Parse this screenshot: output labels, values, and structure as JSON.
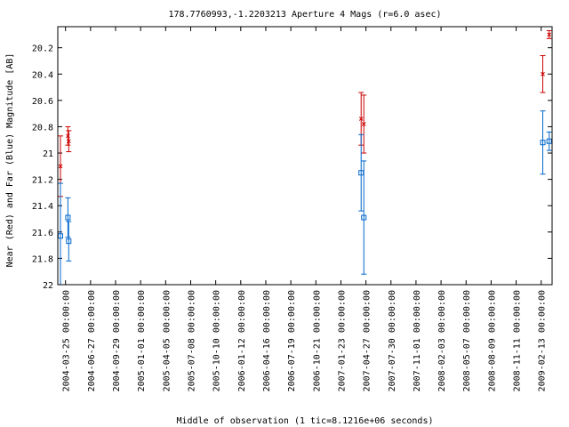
{
  "chart_data": {
    "type": "scatter",
    "title": "178.7760993,-1.2203213   Aperture 4 Mags (r=6.0 asec)",
    "xlabel": "Middle of observation (1 tic=8.1216e+06 seconds)",
    "ylabel": "Near (Red) and Far (Blue) Magnitude [AB]",
    "ylim": [
      20.04,
      22.0
    ],
    "y_reversed": true,
    "grid": false,
    "y_ticks": [
      "20.2",
      "20.4",
      "20.6",
      "20.8",
      "21",
      "21.2",
      "21.4",
      "21.6",
      "21.8",
      "22"
    ],
    "x_ticks": [
      "2004-03-25 00:00:00",
      "2004-06-27 00:00:00",
      "2004-09-29 00:00:00",
      "2005-01-01 00:00:00",
      "2005-04-05 00:00:00",
      "2005-07-08 00:00:00",
      "2005-10-10 00:00:00",
      "2006-01-12 00:00:00",
      "2006-04-16 00:00:00",
      "2006-07-19 00:00:00",
      "2006-10-21 00:00:00",
      "2007-01-23 00:00:00",
      "2007-04-27 00:00:00",
      "2007-07-30 00:00:00",
      "2007-11-01 00:00:00",
      "2008-02-03 00:00:00",
      "2008-05-07 00:00:00",
      "2008-08-09 00:00:00",
      "2008-11-11 00:00:00",
      "2009-02-13 00:00:00"
    ],
    "xlim": [
      "2004-02-25",
      "2009-03-26"
    ],
    "series": [
      {
        "name": "Near (Red)",
        "color": "#cc0000",
        "marker": "x",
        "points": [
          {
            "x": "2004-03-06",
            "y": 21.1,
            "err": 0.23
          },
          {
            "x": "2004-04-03",
            "y": 20.87,
            "err": 0.07
          },
          {
            "x": "2004-04-06",
            "y": 20.91,
            "err": 0.08
          },
          {
            "x": "2007-04-09",
            "y": 20.74,
            "err": 0.2
          },
          {
            "x": "2007-04-19",
            "y": 20.78,
            "err": 0.22
          },
          {
            "x": "2009-02-19",
            "y": 20.4,
            "err": 0.14
          },
          {
            "x": "2009-03-15",
            "y": 20.1,
            "err": 0.03
          }
        ]
      },
      {
        "name": "Far (Blue)",
        "color": "#0066cc",
        "marker": "square",
        "points": [
          {
            "x": "2004-03-06",
            "y": 21.63,
            "err": 0.4
          },
          {
            "x": "2004-04-03",
            "y": 21.49,
            "err": 0.15
          },
          {
            "x": "2004-04-06",
            "y": 21.67,
            "err": 0.15
          },
          {
            "x": "2007-04-09",
            "y": 21.15,
            "err": 0.29
          },
          {
            "x": "2007-04-19",
            "y": 21.49,
            "err": 0.43
          },
          {
            "x": "2009-02-19",
            "y": 20.92,
            "err": 0.24
          },
          {
            "x": "2009-03-15",
            "y": 20.91,
            "err": 0.07
          }
        ]
      }
    ]
  }
}
